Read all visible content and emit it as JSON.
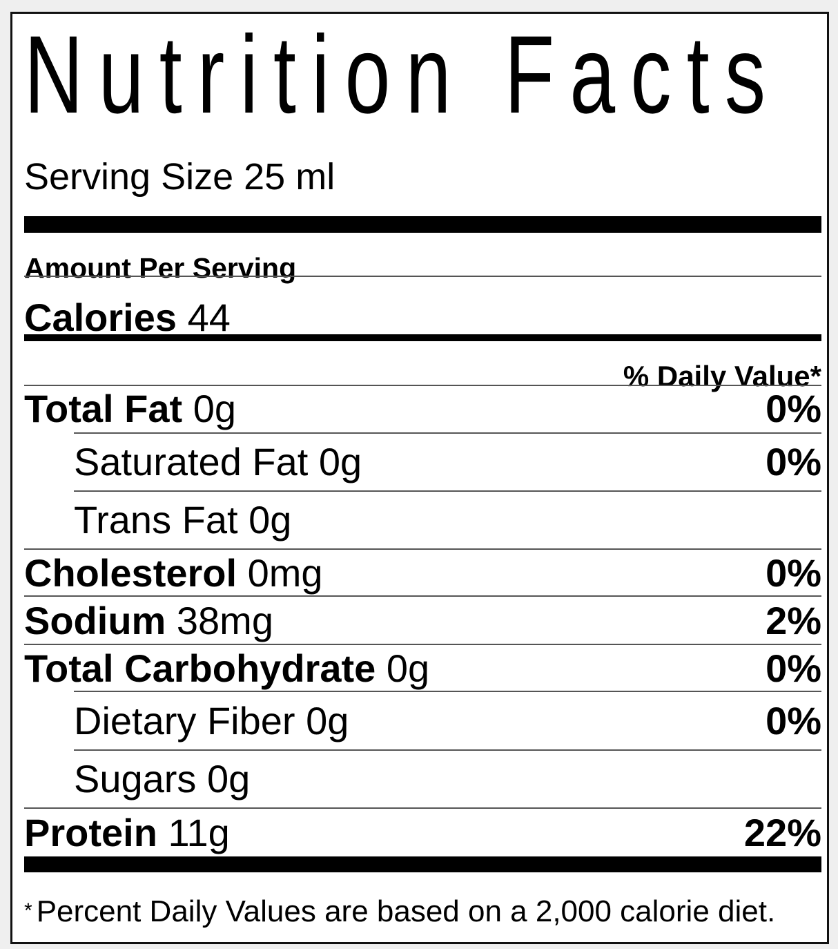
{
  "title": "Nutrition Facts",
  "serving_size": "Serving Size 25 ml",
  "amount_per_serving": "Amount Per Serving",
  "calories": {
    "label": "Calories",
    "value": "44"
  },
  "daily_value_header": "% Daily Value*",
  "nutrients": [
    {
      "label": "Total Fat",
      "amount": "0g",
      "percent": "0%"
    },
    {
      "label": "Saturated Fat",
      "amount": "0g",
      "percent": "0%"
    },
    {
      "label": "Trans Fat",
      "amount": "0g",
      "percent": ""
    },
    {
      "label": "Cholesterol",
      "amount": "0mg",
      "percent": "0%"
    },
    {
      "label": "Sodium",
      "amount": "38mg",
      "percent": "2%"
    },
    {
      "label": "Total Carbohydrate",
      "amount": "0g",
      "percent": "0%"
    },
    {
      "label": "Dietary Fiber",
      "amount": "0g",
      "percent": "0%"
    },
    {
      "label": "Sugars",
      "amount": "0g",
      "percent": ""
    },
    {
      "label": "Protein",
      "amount": "11g",
      "percent": "22%"
    }
  ],
  "footnote": {
    "asterisk": "*",
    "text": "Percent Daily Values are based on a 2,000 calorie diet."
  }
}
